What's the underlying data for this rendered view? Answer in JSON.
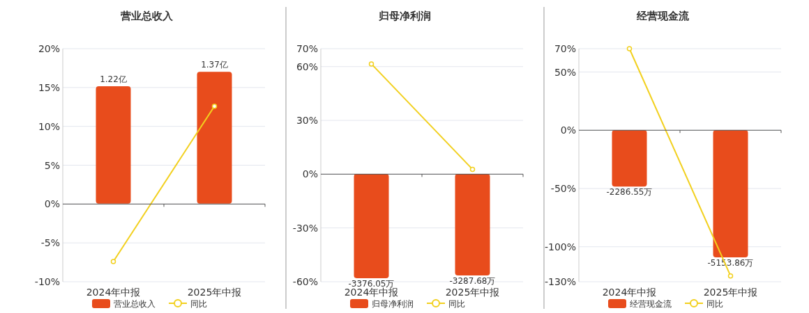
{
  "chart_data": [
    {
      "type": "bar",
      "title": "营业总收入",
      "categories": [
        "2024年中报",
        "2025年中报"
      ],
      "series": [
        {
          "name": "营业总收入",
          "axis": "y2",
          "color": "#e84c1c",
          "values": [
            1.22,
            1.37
          ],
          "value_labels": [
            "1.22亿",
            "1.37亿"
          ]
        },
        {
          "name": "同比",
          "type": "line",
          "color": "#f2d01e",
          "values": [
            -7.4,
            12.6
          ]
        }
      ],
      "ylim": [
        -10,
        20
      ],
      "yticks": [
        {
          "value": -10,
          "label": "-10%"
        },
        {
          "value": -5,
          "label": "-5%"
        },
        {
          "value": 0,
          "label": "0%"
        },
        {
          "value": 5,
          "label": "5%"
        },
        {
          "value": 10,
          "label": "10%"
        },
        {
          "value": 15,
          "label": "15%"
        },
        {
          "value": 20,
          "label": "20%"
        }
      ],
      "y2lim": [
        -0.81,
        1.61
      ],
      "grid": "y",
      "legend": "bottom",
      "marker": "circle"
    },
    {
      "type": "bar",
      "title": "归母净利润",
      "categories": [
        "2024年中报",
        "2025年中报"
      ],
      "series": [
        {
          "name": "归母净利润",
          "axis": "y2",
          "color": "#e84c1c",
          "values": [
            -3376.05,
            -3287.68
          ],
          "value_labels": [
            "-3376.05万",
            "-3287.68万"
          ]
        },
        {
          "name": "同比",
          "type": "line",
          "color": "#f2d01e",
          "values": [
            61.5,
            2.7
          ]
        }
      ],
      "ylim": [
        -60,
        70
      ],
      "yticks": [
        {
          "value": -60,
          "label": "-60%"
        },
        {
          "value": -30,
          "label": "-30%"
        },
        {
          "value": 0,
          "label": "0%"
        },
        {
          "value": 30,
          "label": "30%"
        },
        {
          "value": 60,
          "label": "60%"
        },
        {
          "value": 70,
          "label": "70%"
        }
      ],
      "y2lim": [
        -3490,
        4050
      ],
      "grid": "y",
      "legend": "bottom",
      "marker": "circle"
    },
    {
      "type": "bar",
      "title": "经营现金流",
      "categories": [
        "2024年中报",
        "2025年中报"
      ],
      "series": [
        {
          "name": "经营现金流",
          "axis": "y2",
          "color": "#e84c1c",
          "values": [
            -2286.55,
            -5153.86
          ],
          "value_labels": [
            "-2286.55万",
            "-5153.86万"
          ]
        },
        {
          "name": "同比",
          "type": "line",
          "color": "#f2d01e",
          "values": [
            70,
            -125
          ]
        }
      ],
      "ylim": [
        -130,
        70
      ],
      "yticks": [
        {
          "value": -130,
          "label": "-130%"
        },
        {
          "value": -100,
          "label": "-100%"
        },
        {
          "value": -50,
          "label": "-50%"
        },
        {
          "value": 0,
          "label": "0%"
        },
        {
          "value": 50,
          "label": "50%"
        },
        {
          "value": 70,
          "label": "70%"
        }
      ],
      "y2lim": [
        -6140,
        3300
      ],
      "grid": "y",
      "legend": "bottom",
      "marker": "circle"
    }
  ]
}
